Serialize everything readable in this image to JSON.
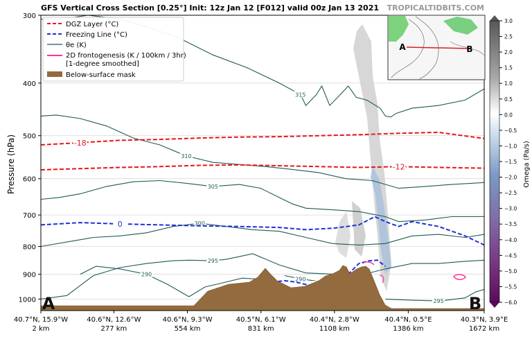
{
  "title": "GFS Vertical Cross Section [0.25°] Init: 12z Jan 12 [F012] valid 00z Jan 13 2021",
  "watermark": "TROPICALTIDBITS.COM",
  "chart_data": {
    "type": "line",
    "ylabel": "Pressure (hPa)",
    "yscale": "log",
    "ylim": [
      1050,
      300
    ],
    "yticks": [
      "300",
      "400",
      "500",
      "600",
      "700",
      "800",
      "900",
      "1000"
    ],
    "x_distance_km": [
      2,
      277,
      554,
      831,
      1108,
      1386,
      1672
    ],
    "xticks": [
      {
        "coord": "40.7°N, 15.9°W",
        "dist": "2 km"
      },
      {
        "coord": "40.6°N, 12.6°W",
        "dist": "277 km"
      },
      {
        "coord": "40.6°N, 9.3°W",
        "dist": "554 km"
      },
      {
        "coord": "40.5°N, 6.1°W",
        "dist": "831 km"
      },
      {
        "coord": "40.4°N, 2.8°W",
        "dist": "1108 km"
      },
      {
        "coord": "40.4°N, 0.5°E",
        "dist": "1386 km"
      },
      {
        "coord": "40.3°N, 3.9°E",
        "dist": "1672 km"
      }
    ],
    "endpoints": {
      "left": "A",
      "right": "B"
    },
    "legend": {
      "position": "top-left",
      "entries": [
        {
          "label": "DGZ Layer (°C)",
          "style": "dashed",
          "color": "#e8141a"
        },
        {
          "label": "Freezing Line (°C)",
          "style": "dashed",
          "color": "#1f2fd6"
        },
        {
          "label": "θe (K)",
          "style": "solid",
          "color": "#1e5a55"
        },
        {
          "label": "2D frontogenesis (K / 100km / 3hr)",
          "label2": "[1-degree smoothed]",
          "style": "solid",
          "color": "#ff3399"
        },
        {
          "label": "Below-surface mask",
          "style": "patch",
          "color": "#946b3e"
        }
      ]
    },
    "series": [
      {
        "name": "DGZ Layer (°C)",
        "label": "-18",
        "color": "#e8141a",
        "x": [
          2,
          150,
          300,
          450,
          600,
          750,
          900,
          1050,
          1200,
          1350,
          1500,
          1672
        ],
        "y": [
          520,
          515,
          510,
          508,
          505,
          503,
          502,
          500,
          498,
          495,
          493,
          506
        ]
      },
      {
        "name": "DGZ Layer (°C)",
        "label": "-12",
        "color": "#e8141a",
        "x": [
          2,
          150,
          300,
          450,
          600,
          750,
          900,
          1050,
          1200,
          1350,
          1500,
          1672
        ],
        "y": [
          578,
          575,
          572,
          570,
          567,
          566,
          568,
          570,
          572,
          570,
          572,
          574
        ]
      },
      {
        "name": "Freezing Line (°C)",
        "label": "0",
        "color": "#1f2fd6",
        "x": [
          2,
          150,
          300,
          450,
          600,
          750,
          900,
          1000,
          1108,
          1200,
          1260,
          1300,
          1350,
          1400,
          1500,
          1600,
          1672
        ],
        "y": [
          730,
          723,
          727,
          730,
          733,
          735,
          738,
          745,
          740,
          730,
          705,
          720,
          735,
          720,
          735,
          765,
          795
        ]
      },
      {
        "name": "Freezing Line (°C)",
        "label": "0",
        "color": "#1f2fd6",
        "x": [
          830,
          880,
          920,
          960,
          1000,
          1040,
          1080,
          1120,
          1160,
          1200,
          1240,
          1270,
          1300
        ],
        "y": [
          955,
          930,
          925,
          930,
          940,
          945,
          948,
          940,
          900,
          860,
          850,
          848,
          870
        ]
      }
    ],
    "theta_e": [
      {
        "label": "315",
        "x": [
          2,
          80,
          180,
          300,
          400,
          520,
          650,
          780,
          900,
          980,
          1000,
          1040,
          1060,
          1090,
          1130,
          1160,
          1190,
          1230,
          1280,
          1300,
          1320,
          1340,
          1400,
          1500,
          1600,
          1672
        ],
        "y": [
          305,
          305,
          300,
          305,
          315,
          330,
          355,
          375,
          400,
          420,
          440,
          420,
          405,
          440,
          420,
          405,
          425,
          430,
          445,
          460,
          462,
          455,
          445,
          440,
          430,
          410
        ]
      },
      {
        "label": "310",
        "x": [
          2,
          60,
          150,
          250,
          350,
          450,
          550,
          650,
          750,
          850,
          950,
          1050,
          1150,
          1250,
          1350,
          1450,
          1550,
          1672
        ],
        "y": [
          460,
          458,
          465,
          480,
          505,
          520,
          545,
          560,
          565,
          570,
          577,
          585,
          600,
          605,
          625,
          620,
          615,
          610
        ]
      },
      {
        "label": "305",
        "x": [
          2,
          70,
          150,
          250,
          350,
          450,
          550,
          650,
          750,
          830,
          900,
          950,
          1000,
          1108,
          1200,
          1300,
          1350,
          1450,
          1550,
          1672
        ],
        "y": [
          655,
          650,
          640,
          620,
          608,
          605,
          612,
          620,
          615,
          625,
          650,
          668,
          680,
          685,
          690,
          705,
          720,
          715,
          705,
          705
        ]
      },
      {
        "label": "300",
        "x": [
          2,
          100,
          200,
          300,
          400,
          500,
          600,
          700,
          800,
          900,
          1000,
          1100,
          1200,
          1300,
          1400,
          1500,
          1600,
          1672
        ],
        "y": [
          800,
          785,
          770,
          765,
          755,
          735,
          725,
          735,
          745,
          750,
          770,
          790,
          795,
          790,
          765,
          760,
          770,
          760
        ]
      },
      {
        "label": "295",
        "x": [
          2,
          100,
          200,
          300,
          400,
          500,
          560,
          650,
          700,
          750,
          800,
          900,
          1000,
          1108,
          1200,
          1300,
          1400,
          1500,
          1600,
          1672
        ],
        "y": [
          1000,
          985,
          905,
          875,
          860,
          850,
          848,
          850,
          845,
          835,
          825,
          865,
          895,
          900,
          905,
          880,
          860,
          860,
          852,
          848
        ]
      },
      {
        "label": "290",
        "x": [
          150,
          210,
          300,
          400,
          480,
          560,
          620,
          680,
          760,
          840,
          870
        ],
        "y": [
          900,
          870,
          880,
          900,
          940,
          990,
          950,
          935,
          915,
          920,
          925
        ]
      },
      {
        "label": "290",
        "x": [
          920,
          980,
          1030,
          1060,
          1080
        ],
        "y": [
          905,
          918,
          925,
          930,
          925
        ]
      },
      {
        "label": "295",
        "x": [
          1300,
          1400,
          1500,
          1550,
          1600,
          1640,
          1672
        ],
        "y": [
          1000,
          1005,
          1008,
          1002,
          995,
          970,
          960
        ]
      }
    ],
    "colorbar": {
      "label": "Omega (Pa/s)",
      "range": [
        -6.0,
        3.0
      ],
      "ticks": [
        "3.0",
        "2.5",
        "2.0",
        "1.5",
        "1.0",
        "0.5",
        "0.0",
        "−0.5",
        "−1.0",
        "−1.5",
        "−2.0",
        "−2.5",
        "−3.0",
        "−3.5",
        "−4.0",
        "−4.5",
        "−5.0",
        "−5.5",
        "−6.0"
      ]
    },
    "inset_map": {
      "point_a": "A",
      "point_b": "B"
    }
  }
}
